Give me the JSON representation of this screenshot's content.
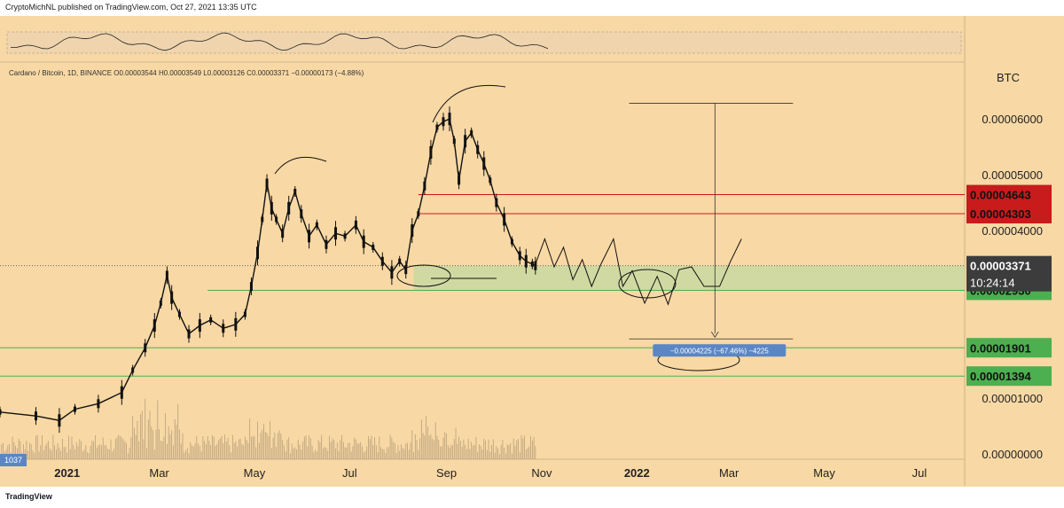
{
  "header": {
    "published": "CryptoMichNL published on TradingView.com, Oct 27, 2021 13:35 UTC",
    "legend": "Cardano / Bitcoin, 1D, BINANCE  O0.00003544  H0.00003549  L0.00003126  C0.00003371  −0.00000173 (−4.88%)",
    "unit": "BTC"
  },
  "footer": {
    "logo": "TradingView"
  },
  "colors": {
    "background": "#f8d8a4",
    "candle": "#111111",
    "resistance": "#c81b1b",
    "support": "#4caf50",
    "zone": "#c5d9a0",
    "current": "#3c3c3c",
    "measure": "#5b86c4"
  },
  "chart_data": {
    "type": "candlestick",
    "symbol": "Cardano / Bitcoin, 1D, BINANCE",
    "ylim": [
      0,
      6.7e-05
    ],
    "y_ticks": [
      "0.00006000",
      "0.00005000",
      "0.00004000",
      "0.00001000",
      "0.00000000"
    ],
    "x_ticks": [
      "2021",
      "Mar",
      "May",
      "Jul",
      "Sep",
      "Nov",
      "2022",
      "Mar",
      "May",
      "Jul"
    ],
    "x_tick_times": [
      0,
      59,
      120,
      181,
      243,
      304,
      365,
      424,
      485,
      546
    ],
    "x_range": [
      -43,
      575
    ],
    "price_path": [
      [
        -43,
        7.5e-06
      ],
      [
        -20,
        6.8e-06
      ],
      [
        -5,
        6e-06
      ],
      [
        5,
        8e-06
      ],
      [
        20,
        9e-06
      ],
      [
        35,
        1.1e-05
      ],
      [
        42,
        1.5e-05
      ],
      [
        50,
        1.9e-05
      ],
      [
        56,
        2.3e-05
      ],
      [
        60,
        2.7e-05
      ],
      [
        64,
        3.2e-05
      ],
      [
        67,
        2.8e-05
      ],
      [
        72,
        2.5e-05
      ],
      [
        78,
        2.15e-05
      ],
      [
        85,
        2.3e-05
      ],
      [
        92,
        2.4e-05
      ],
      [
        100,
        2.25e-05
      ],
      [
        108,
        2.32e-05
      ],
      [
        114,
        2.5e-05
      ],
      [
        118,
        3e-05
      ],
      [
        122,
        3.6e-05
      ],
      [
        125,
        4.2e-05
      ],
      [
        128,
        4.85e-05
      ],
      [
        131,
        4.4e-05
      ],
      [
        134,
        4.2e-05
      ],
      [
        138,
        3.95e-05
      ],
      [
        142,
        4.4e-05
      ],
      [
        146,
        4.7e-05
      ],
      [
        150,
        4.3e-05
      ],
      [
        155,
        3.9e-05
      ],
      [
        160,
        4.1e-05
      ],
      [
        166,
        3.75e-05
      ],
      [
        172,
        3.95e-05
      ],
      [
        178,
        3.9e-05
      ],
      [
        185,
        4.1e-05
      ],
      [
        190,
        3.8e-05
      ],
      [
        196,
        3.7e-05
      ],
      [
        202,
        3.45e-05
      ],
      [
        208,
        3.25e-05
      ],
      [
        213,
        3.45e-05
      ],
      [
        217,
        3.3e-05
      ],
      [
        221,
        4e-05
      ],
      [
        225,
        4.3e-05
      ],
      [
        229,
        4.8e-05
      ],
      [
        233,
        5.4e-05
      ],
      [
        237,
        5.85e-05
      ],
      [
        241,
        5.95e-05
      ],
      [
        245,
        6e-05
      ],
      [
        248,
        5.6e-05
      ],
      [
        251,
        4.9e-05
      ],
      [
        255,
        5.6e-05
      ],
      [
        259,
        5.75e-05
      ],
      [
        263,
        5.45e-05
      ],
      [
        267,
        5.2e-05
      ],
      [
        271,
        4.9e-05
      ],
      [
        275,
        4.5e-05
      ],
      [
        280,
        4.2e-05
      ],
      [
        285,
        3.8e-05
      ],
      [
        290,
        3.55e-05
      ],
      [
        294,
        3.45e-05
      ],
      [
        298,
        3.4e-05
      ],
      [
        300,
        3.37e-05
      ]
    ],
    "horizontal_levels": [
      {
        "label": "0.00004643",
        "value": 4.643e-05,
        "role": "resistance",
        "from": 225
      },
      {
        "label": "0.00004303",
        "value": 4.303e-05,
        "role": "resistance",
        "from": 225
      },
      {
        "label": "0.00002930",
        "value": 2.93e-05,
        "role": "support",
        "from": 90
      },
      {
        "label": "0.00001901",
        "value": 1.901e-05,
        "role": "support",
        "from": -43
      },
      {
        "label": "0.00001394",
        "value": 1.394e-05,
        "role": "support",
        "from": -43
      }
    ],
    "support_zone": {
      "from": 2.93e-05,
      "to": 3.371e-05
    },
    "current": {
      "price": "0.00003371",
      "value": 3.371e-05,
      "countdown": "10:24:14"
    },
    "measure": {
      "label": "−0.00004225 (−67.46%) −4225",
      "top": 6.28e-05,
      "bottom": 2.06e-05,
      "t_start": 360,
      "t_end": 465,
      "t_arrow": 415
    },
    "volume_badge": "1037",
    "projection_path": [
      [
        300,
        3.4e-05
      ],
      [
        306,
        3.85e-05
      ],
      [
        312,
        3.35e-05
      ],
      [
        318,
        3.7e-05
      ],
      [
        324,
        3.12e-05
      ],
      [
        330,
        3.48e-05
      ],
      [
        336,
        3e-05
      ],
      [
        342,
        3.4e-05
      ],
      [
        350,
        3.85e-05
      ],
      [
        356,
        3e-05
      ],
      [
        362,
        3.28e-05
      ],
      [
        370,
        2.7e-05
      ],
      [
        378,
        3.18e-05
      ],
      [
        385,
        2.68e-05
      ],
      [
        392,
        3.3e-05
      ],
      [
        400,
        3.35e-05
      ],
      [
        408,
        3e-05
      ],
      [
        418,
        3e-05
      ],
      [
        425,
        3.45e-05
      ],
      [
        432,
        3.85e-05
      ]
    ]
  }
}
